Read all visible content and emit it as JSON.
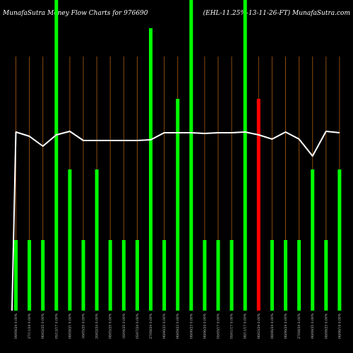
{
  "chart_data": {
    "type": "bar",
    "title_left": "MunafaSutra  Money Flow  Charts for 976690",
    "title_right": "(EHL-11.25%-13-11-26-FT) MunafaSutra.com",
    "categories": [
      "09/09/24 0.00%",
      "27/11/24 0.00%",
      "06/02/25 0.00%",
      "05/12/17 0.00%",
      "08/09/21 0.00%",
      "16/05/25 0.00%",
      "20/02/24 0.00%",
      "08/05/25 0.00%",
      "16/04/25 0.00%",
      "05/07/24 0.00%",
      "27/08/24 0.00%",
      "06/06/23 0.00%",
      "06/09/23 0.00%",
      "08/06/23 0.00%",
      "06/06/24 0.00%",
      "05/05/17 0.00%",
      "05/01/17 0.00%",
      "08/11/17 0.00%",
      "06/03/24 0.00%",
      "08/06/24 0.00%",
      "06/06/24 0.00%",
      "27/08/24 0.00%",
      "06/08/25 0.00%",
      "08/08/23 0.00%",
      "06/06/19 0.00%"
    ],
    "bar_values": [
      1,
      1,
      1,
      5,
      2,
      1,
      2,
      1,
      1,
      1,
      4,
      1,
      3,
      5,
      1,
      1,
      1,
      5,
      3,
      1,
      1,
      1,
      2,
      1,
      2
    ],
    "bar_colors": [
      "green",
      "green",
      "green",
      "green",
      "green",
      "green",
      "green",
      "green",
      "green",
      "green",
      "green",
      "green",
      "green",
      "green",
      "green",
      "green",
      "green",
      "green",
      "red",
      "green",
      "green",
      "green",
      "green",
      "green",
      "green"
    ],
    "line_values": [
      2.53,
      2.47,
      2.33,
      2.49,
      2.54,
      2.41,
      2.41,
      2.41,
      2.41,
      2.41,
      2.42,
      2.52,
      2.52,
      2.52,
      2.51,
      2.52,
      2.52,
      2.53,
      2.49,
      2.43,
      2.53,
      2.43,
      2.19,
      2.54,
      2.52
    ],
    "line_start": 0,
    "ylim": [
      0,
      4
    ],
    "colors": {
      "background": "#000000",
      "green": "#00ff00",
      "red": "#ff0000",
      "line": "#ffffff",
      "vline": "#8a4a0e"
    }
  }
}
